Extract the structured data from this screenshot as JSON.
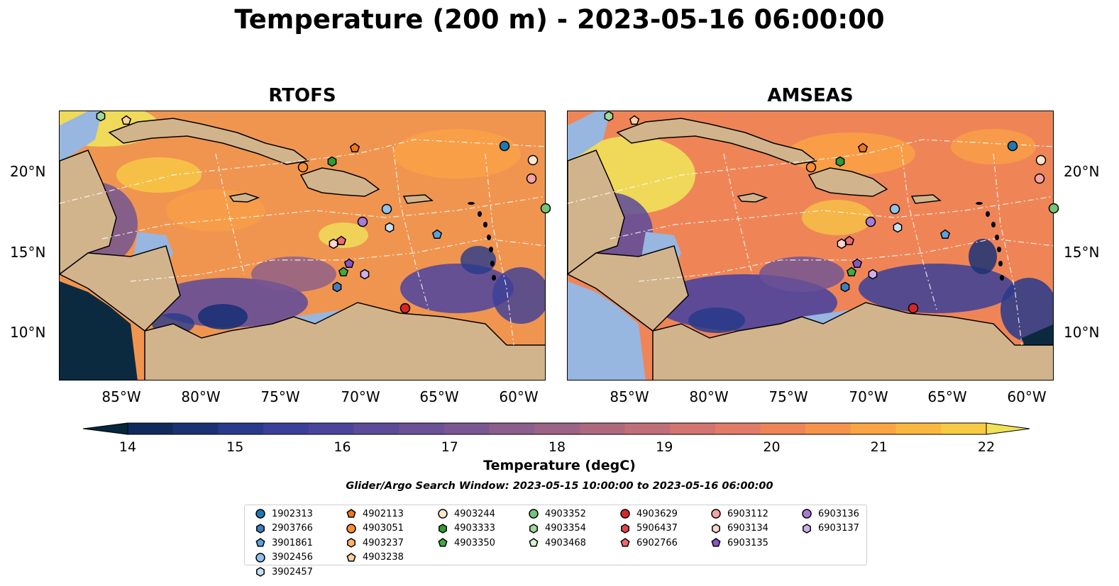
{
  "title": "Temperature (200 m) - 2023-05-16 06:00:00",
  "panels": [
    {
      "title": "RTOFS"
    },
    {
      "title": "AMSEAS"
    }
  ],
  "lat_labels": [
    "20°N",
    "15°N",
    "10°N"
  ],
  "lon_labels": [
    "85°W",
    "80°W",
    "75°W",
    "70°W",
    "65°W",
    "60°W"
  ],
  "colorbar": {
    "label": "Temperature (degC)",
    "ticks": [
      "14",
      "15",
      "16",
      "17",
      "18",
      "19",
      "20",
      "21",
      "22"
    ],
    "colors": [
      "#05263c",
      "#102a5b",
      "#1b3175",
      "#273a8b",
      "#3b3f99",
      "#4b449d",
      "#5c4a9b",
      "#6b5196",
      "#7a5791",
      "#8b5e8c",
      "#9b6385",
      "#ae697e",
      "#c06f78",
      "#d27570",
      "#e27b67",
      "#ef8557",
      "#f7944b",
      "#fba444",
      "#fbb840",
      "#f8cb45",
      "#f0e15a"
    ]
  },
  "search_window": "Glider/Argo Search Window: 2023-05-15 10:00:00 to 2023-05-16 06:00:00",
  "legend": [
    {
      "id": "1902313",
      "color": "#1f77b4",
      "marker": "circle"
    },
    {
      "id": "2903766",
      "color": "#3f7fc0",
      "marker": "hexagon"
    },
    {
      "id": "3901861",
      "color": "#5ba2dc",
      "marker": "pentagon"
    },
    {
      "id": "3902456",
      "color": "#8fc1ea",
      "marker": "circle"
    },
    {
      "id": "3902457",
      "color": "#c6e0f4",
      "marker": "hexagon"
    },
    {
      "id": "4902113",
      "color": "#f0761e",
      "marker": "pentagon"
    },
    {
      "id": "4903051",
      "color": "#fd8f33",
      "marker": "circle"
    },
    {
      "id": "4903237",
      "color": "#fdb36b",
      "marker": "hexagon"
    },
    {
      "id": "4903238",
      "color": "#fdd0a2",
      "marker": "pentagon"
    },
    {
      "id": "4903244",
      "color": "#fee6ce",
      "marker": "circle"
    },
    {
      "id": "4903333",
      "color": "#2ca02c",
      "marker": "hexagon"
    },
    {
      "id": "4903350",
      "color": "#41ab3d",
      "marker": "pentagon"
    },
    {
      "id": "4903352",
      "color": "#74c476",
      "marker": "circle"
    },
    {
      "id": "4903354",
      "color": "#a1d99b",
      "marker": "hexagon"
    },
    {
      "id": "4903468",
      "color": "#d4f5cf",
      "marker": "pentagon"
    },
    {
      "id": "4903629",
      "color": "#d62728",
      "marker": "circle"
    },
    {
      "id": "5906437",
      "color": "#e0474b",
      "marker": "hexagon"
    },
    {
      "id": "6902766",
      "color": "#ec6b73",
      "marker": "pentagon"
    },
    {
      "id": "6903112",
      "color": "#f4a3a6",
      "marker": "circle"
    },
    {
      "id": "6903134",
      "color": "#fbd3d3",
      "marker": "hexagon"
    },
    {
      "id": "6903135",
      "color": "#8856c4",
      "marker": "pentagon"
    },
    {
      "id": "6903136",
      "color": "#a57dd6",
      "marker": "circle"
    },
    {
      "id": "6903137",
      "color": "#cbb0ec",
      "marker": "hexagon"
    }
  ],
  "map_colors": {
    "land": "#d2b48c",
    "shelf": "#97b6e0",
    "deep_cold": "#0b2a40"
  }
}
